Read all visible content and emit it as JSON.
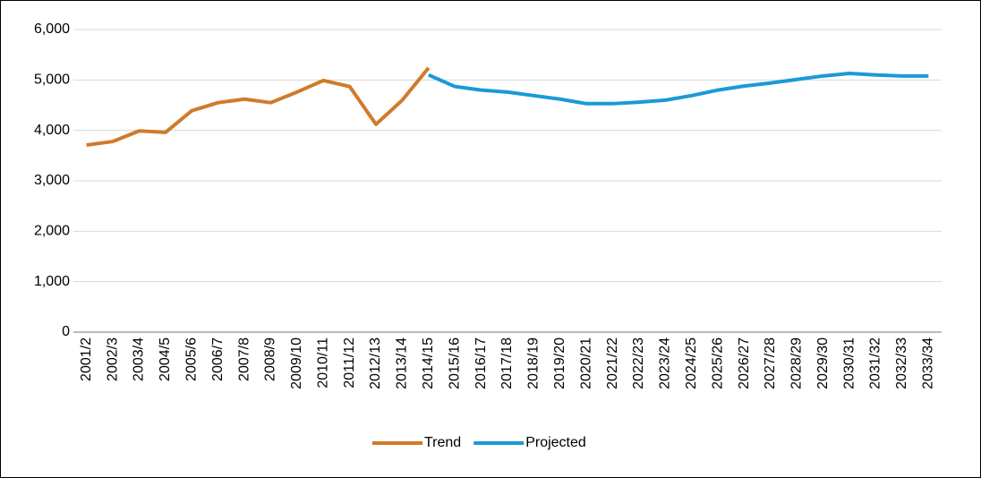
{
  "chart_data": {
    "type": "line",
    "categories": [
      "2001/2",
      "2002/3",
      "2003/4",
      "2004/5",
      "2005/6",
      "2006/7",
      "2007/8",
      "2008/9",
      "2009/10",
      "2010/11",
      "2011/12",
      "2012/13",
      "2013/14",
      "2014/15",
      "2015/16",
      "2016/17",
      "2017/18",
      "2018/19",
      "2019/20",
      "2020/21",
      "2021/22",
      "2022/23",
      "2023/24",
      "2024/25",
      "2025/26",
      "2026/27",
      "2027/28",
      "2028/29",
      "2029/30",
      "2030/31",
      "2031/32",
      "2032/33",
      "2033/34"
    ],
    "series": [
      {
        "name": "Trend",
        "color": "#d07a2b",
        "values": [
          3710,
          3780,
          3990,
          3960,
          4390,
          4550,
          4620,
          4550,
          4760,
          4990,
          4870,
          4120,
          4600,
          5240,
          null,
          null,
          null,
          null,
          null,
          null,
          null,
          null,
          null,
          null,
          null,
          null,
          null,
          null,
          null,
          null,
          null,
          null,
          null
        ]
      },
      {
        "name": "Projected",
        "color": "#1a9ad6",
        "values": [
          null,
          null,
          null,
          null,
          null,
          null,
          null,
          null,
          null,
          null,
          null,
          null,
          null,
          5100,
          4870,
          4800,
          4760,
          4690,
          4620,
          4530,
          4530,
          4560,
          4600,
          4690,
          4800,
          4880,
          4940,
          5010,
          5080,
          5130,
          5100,
          5080,
          5080
        ]
      }
    ],
    "ylim": [
      0,
      6000
    ],
    "yticks": [
      0,
      {
        "value": 1000,
        "label": "1,000"
      },
      {
        "value": 2000,
        "label": "2,000"
      },
      {
        "value": 3000,
        "label": "3,000"
      },
      {
        "value": 4000,
        "label": "4,000"
      },
      {
        "value": 5000,
        "label": "5,000"
      },
      {
        "value": 6000,
        "label": "6,000"
      }
    ],
    "grid": true,
    "legend": "bottom"
  }
}
